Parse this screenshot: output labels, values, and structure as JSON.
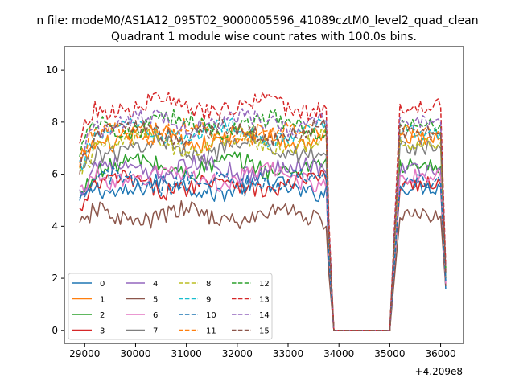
{
  "chart_data": {
    "type": "line",
    "suptitle": "n file: modeM0/AS1A12_095T02_9000005596_41089cztM0_level2_quad_clean",
    "title": "Quadrant 1 module wise count rates with 100.0s bins.",
    "xlabel": "",
    "ylabel": "",
    "x_offset_label": "+4.209e8",
    "xlim": [
      28600,
      36450
    ],
    "ylim": [
      -0.5,
      10.9
    ],
    "x_ticks": [
      29000,
      30000,
      31000,
      32000,
      33000,
      34000,
      35000,
      36000
    ],
    "x_tick_labels": [
      "29000",
      "30000",
      "31000",
      "32000",
      "33000",
      "34000",
      "35000",
      "36000"
    ],
    "y_ticks": [
      0,
      2,
      4,
      6,
      8,
      10
    ],
    "y_tick_labels": [
      "0",
      "2",
      "4",
      "6",
      "8",
      "10"
    ],
    "grid": false,
    "legend_position": "lower-left",
    "legend_columns": 4,
    "segments": [
      {
        "t0": 28900,
        "t1": 33800,
        "kind": "on"
      },
      {
        "t0": 33800,
        "t1": 33900,
        "kind": "ramp_down"
      },
      {
        "t0": 33900,
        "t1": 35000,
        "kind": "off"
      },
      {
        "t0": 35000,
        "t1": 35200,
        "kind": "ramp_up"
      },
      {
        "t0": 35200,
        "t1": 36000,
        "kind": "on"
      },
      {
        "t0": 36000,
        "t1": 36100,
        "kind": "ramp_down"
      }
    ],
    "series": [
      {
        "name": "0",
        "color": "#1f77b4",
        "dash": "solid",
        "level": 5.5,
        "end": 1.6
      },
      {
        "name": "1",
        "color": "#ff7f0e",
        "dash": "solid",
        "level": 7.4,
        "end": 2.2
      },
      {
        "name": "2",
        "color": "#2ca02c",
        "dash": "solid",
        "level": 6.3,
        "end": 2.0
      },
      {
        "name": "3",
        "color": "#d62728",
        "dash": "solid",
        "level": 5.6,
        "end": 1.8
      },
      {
        "name": "4",
        "color": "#9467bd",
        "dash": "solid",
        "level": 6.2,
        "end": 1.9
      },
      {
        "name": "5",
        "color": "#8c564b",
        "dash": "solid",
        "level": 4.4,
        "end": 1.7
      },
      {
        "name": "6",
        "color": "#e377c2",
        "dash": "solid",
        "level": 5.9,
        "end": 1.8
      },
      {
        "name": "7",
        "color": "#7f7f7f",
        "dash": "solid",
        "level": 7.0,
        "end": 2.0
      },
      {
        "name": "8",
        "color": "#bcbd22",
        "dash": "dashed",
        "level": 7.2,
        "end": 2.1
      },
      {
        "name": "9",
        "color": "#17becf",
        "dash": "dashed",
        "level": 7.6,
        "end": 2.2
      },
      {
        "name": "10",
        "color": "#1f77b4",
        "dash": "dashed",
        "level": 5.7,
        "end": 1.9
      },
      {
        "name": "11",
        "color": "#ff7f0e",
        "dash": "dashed",
        "level": 7.6,
        "end": 2.3
      },
      {
        "name": "12",
        "color": "#2ca02c",
        "dash": "dashed",
        "level": 7.9,
        "end": 2.4
      },
      {
        "name": "13",
        "color": "#d62728",
        "dash": "dashed",
        "level": 8.6,
        "end": 2.5
      },
      {
        "name": "14",
        "color": "#9467bd",
        "dash": "dashed",
        "level": 8.0,
        "end": 2.3
      },
      {
        "name": "15",
        "color": "#8c564b",
        "dash": "dashed",
        "level": 7.6,
        "end": 2.2
      }
    ]
  }
}
